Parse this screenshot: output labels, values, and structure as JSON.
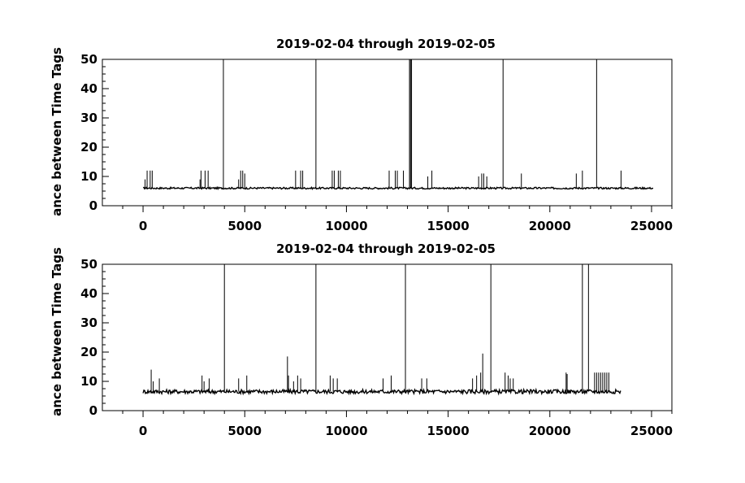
{
  "chart_data": [
    {
      "type": "line",
      "title": "2019-02-04 through 2019-02-05",
      "xlabel": "",
      "ylabel": "ance between Time Tags",
      "xlim": [
        -2000,
        26000
      ],
      "ylim": [
        0,
        50
      ],
      "xticks": [
        0,
        5000,
        10000,
        15000,
        20000,
        25000
      ],
      "yticks": [
        0,
        10,
        20,
        30,
        40,
        50
      ],
      "grid": false,
      "series": [
        {
          "baseline": 6,
          "baseline_jitter": 0.6,
          "x_end": 25100,
          "tall_spikes": [
            3950,
            8500,
            13100,
            13150,
            13200,
            17700,
            22300
          ],
          "spikes": [
            {
              "x": 100,
              "y": 9
            },
            {
              "x": 200,
              "y": 12
            },
            {
              "x": 350,
              "y": 12
            },
            {
              "x": 450,
              "y": 12
            },
            {
              "x": 2800,
              "y": 9
            },
            {
              "x": 2850,
              "y": 12
            },
            {
              "x": 3050,
              "y": 12
            },
            {
              "x": 3200,
              "y": 12
            },
            {
              "x": 4700,
              "y": 9
            },
            {
              "x": 4800,
              "y": 12
            },
            {
              "x": 4900,
              "y": 12
            },
            {
              "x": 5000,
              "y": 11
            },
            {
              "x": 7500,
              "y": 12
            },
            {
              "x": 7750,
              "y": 12
            },
            {
              "x": 7850,
              "y": 12
            },
            {
              "x": 9300,
              "y": 12
            },
            {
              "x": 9400,
              "y": 12
            },
            {
              "x": 9600,
              "y": 12
            },
            {
              "x": 9700,
              "y": 12
            },
            {
              "x": 12100,
              "y": 12
            },
            {
              "x": 12400,
              "y": 12
            },
            {
              "x": 12500,
              "y": 12
            },
            {
              "x": 12800,
              "y": 12
            },
            {
              "x": 14000,
              "y": 10
            },
            {
              "x": 14200,
              "y": 12
            },
            {
              "x": 16500,
              "y": 10
            },
            {
              "x": 16650,
              "y": 11
            },
            {
              "x": 16750,
              "y": 11
            },
            {
              "x": 16900,
              "y": 10
            },
            {
              "x": 18600,
              "y": 11
            },
            {
              "x": 21300,
              "y": 11
            },
            {
              "x": 21600,
              "y": 12
            },
            {
              "x": 23500,
              "y": 12
            }
          ]
        }
      ]
    },
    {
      "type": "line",
      "title": "2019-02-04 through 2019-02-05",
      "xlabel": "",
      "ylabel": "ance between Time Tags",
      "xlim": [
        -2000,
        26000
      ],
      "ylim": [
        0,
        50
      ],
      "xticks": [
        0,
        5000,
        10000,
        15000,
        20000,
        25000
      ],
      "yticks": [
        0,
        10,
        20,
        30,
        40,
        50
      ],
      "grid": false,
      "series": [
        {
          "baseline": 6.5,
          "baseline_jitter": 1.4,
          "x_end": 23500,
          "tall_spikes": [
            4000,
            8500,
            12900,
            17100,
            21600,
            21900
          ],
          "spikes": [
            {
              "x": 400,
              "y": 14
            },
            {
              "x": 500,
              "y": 10
            },
            {
              "x": 800,
              "y": 11
            },
            {
              "x": 2900,
              "y": 12
            },
            {
              "x": 3000,
              "y": 10
            },
            {
              "x": 3250,
              "y": 11
            },
            {
              "x": 4700,
              "y": 11
            },
            {
              "x": 5100,
              "y": 12
            },
            {
              "x": 7100,
              "y": 18.5
            },
            {
              "x": 7150,
              "y": 12
            },
            {
              "x": 7400,
              "y": 10
            },
            {
              "x": 7600,
              "y": 12
            },
            {
              "x": 7750,
              "y": 11
            },
            {
              "x": 9200,
              "y": 12
            },
            {
              "x": 9350,
              "y": 11
            },
            {
              "x": 9550,
              "y": 11
            },
            {
              "x": 11800,
              "y": 11
            },
            {
              "x": 12200,
              "y": 12
            },
            {
              "x": 13700,
              "y": 11
            },
            {
              "x": 13950,
              "y": 11
            },
            {
              "x": 16200,
              "y": 11
            },
            {
              "x": 16400,
              "y": 12
            },
            {
              "x": 16600,
              "y": 13
            },
            {
              "x": 16700,
              "y": 19.5
            },
            {
              "x": 17800,
              "y": 13
            },
            {
              "x": 17950,
              "y": 12
            },
            {
              "x": 18050,
              "y": 11
            },
            {
              "x": 18200,
              "y": 11
            },
            {
              "x": 20800,
              "y": 13
            },
            {
              "x": 20850,
              "y": 12.5
            },
            {
              "x": 22200,
              "y": 13
            },
            {
              "x": 22300,
              "y": 13
            },
            {
              "x": 22400,
              "y": 13
            },
            {
              "x": 22500,
              "y": 13
            },
            {
              "x": 22600,
              "y": 13
            },
            {
              "x": 22700,
              "y": 13
            },
            {
              "x": 22800,
              "y": 13
            },
            {
              "x": 22900,
              "y": 13
            }
          ]
        }
      ]
    }
  ]
}
